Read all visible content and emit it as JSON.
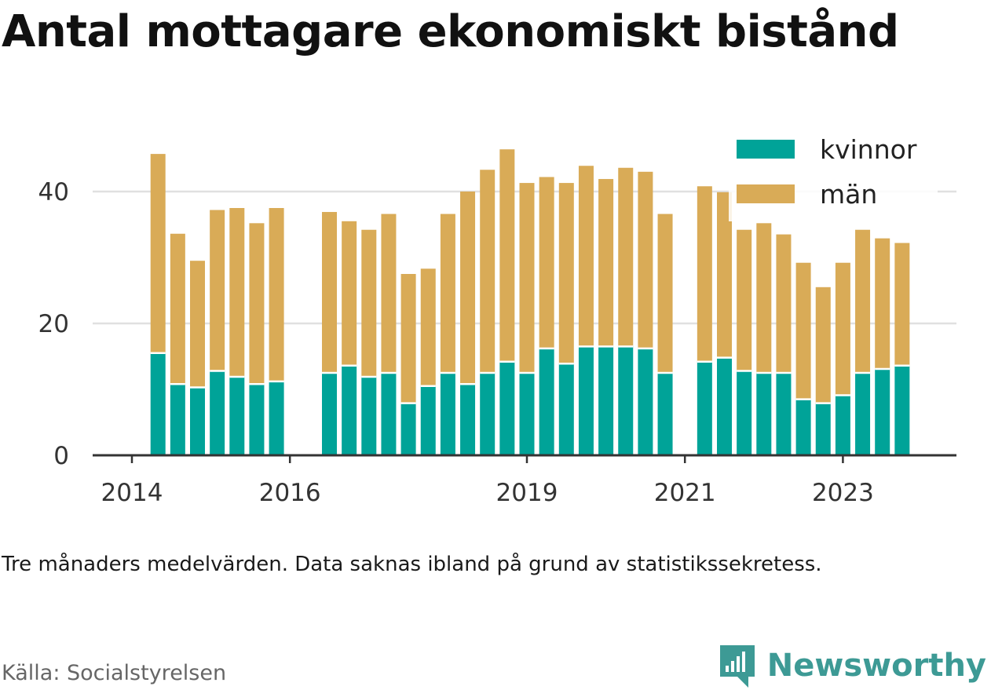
{
  "title": "Antal mottagare ekonomiskt bistånd",
  "caption": "Tre månaders medelvärden. Data saknas ibland på grund av statistikssekretess.",
  "source": "Källa: Socialstyrelsen",
  "brand": {
    "name": "Newsworthy",
    "color": "#3d9a95",
    "icon": "newsworthy-logo-icon"
  },
  "colors": {
    "kvinnor": "#00a398",
    "man": "#d9ab57",
    "grid": "#e0e0e0",
    "axis": "#333333"
  },
  "chart_data": {
    "type": "bar",
    "stacked": true,
    "ylim": [
      0,
      47
    ],
    "yticks": [
      0,
      20,
      40
    ],
    "grid": true,
    "legend_position": "top-right",
    "xticks": [
      {
        "label": "2014",
        "x": 2014.0
      },
      {
        "label": "2016",
        "x": 2016.0
      },
      {
        "label": "2019",
        "x": 2019.0
      },
      {
        "label": "2021",
        "x": 2021.0
      },
      {
        "label": "2023",
        "x": 2023.0
      }
    ],
    "series": [
      {
        "name": "kvinnor",
        "key": "kvinnor"
      },
      {
        "name": "män",
        "key": "man"
      }
    ],
    "x": [
      2014.33,
      2014.58,
      2014.83,
      2015.08,
      2015.33,
      2015.58,
      2015.83,
      2016.5,
      2016.75,
      2017.0,
      2017.25,
      2017.5,
      2017.75,
      2018.0,
      2018.25,
      2018.5,
      2018.75,
      2019.0,
      2019.25,
      2019.5,
      2019.75,
      2020.0,
      2020.25,
      2020.5,
      2020.75,
      2021.25,
      2021.5,
      2021.75,
      2022.0,
      2022.25,
      2022.5,
      2022.75,
      2023.0,
      2023.25,
      2023.5,
      2023.75
    ],
    "kvinnor": [
      15.5,
      10.8,
      10.3,
      12.8,
      11.9,
      10.8,
      11.2,
      12.5,
      13.6,
      11.9,
      12.5,
      7.9,
      10.5,
      12.5,
      10.8,
      12.5,
      14.2,
      12.5,
      16.2,
      13.9,
      16.5,
      16.5,
      16.5,
      16.2,
      12.5,
      14.2,
      14.8,
      12.8,
      12.5,
      12.5,
      8.5,
      7.9,
      9.1,
      12.5,
      13.1,
      13.6
    ],
    "totals": [
      45.7,
      33.6,
      29.5,
      37.2,
      37.5,
      35.2,
      37.5,
      36.9,
      35.5,
      34.2,
      36.6,
      27.5,
      28.3,
      36.6,
      40.0,
      43.3,
      46.4,
      41.3,
      42.2,
      41.3,
      43.9,
      41.9,
      43.6,
      43.0,
      36.6,
      40.8,
      39.9,
      34.2,
      35.2,
      33.5,
      29.2,
      25.5,
      29.2,
      34.2,
      32.9,
      32.2
    ]
  }
}
